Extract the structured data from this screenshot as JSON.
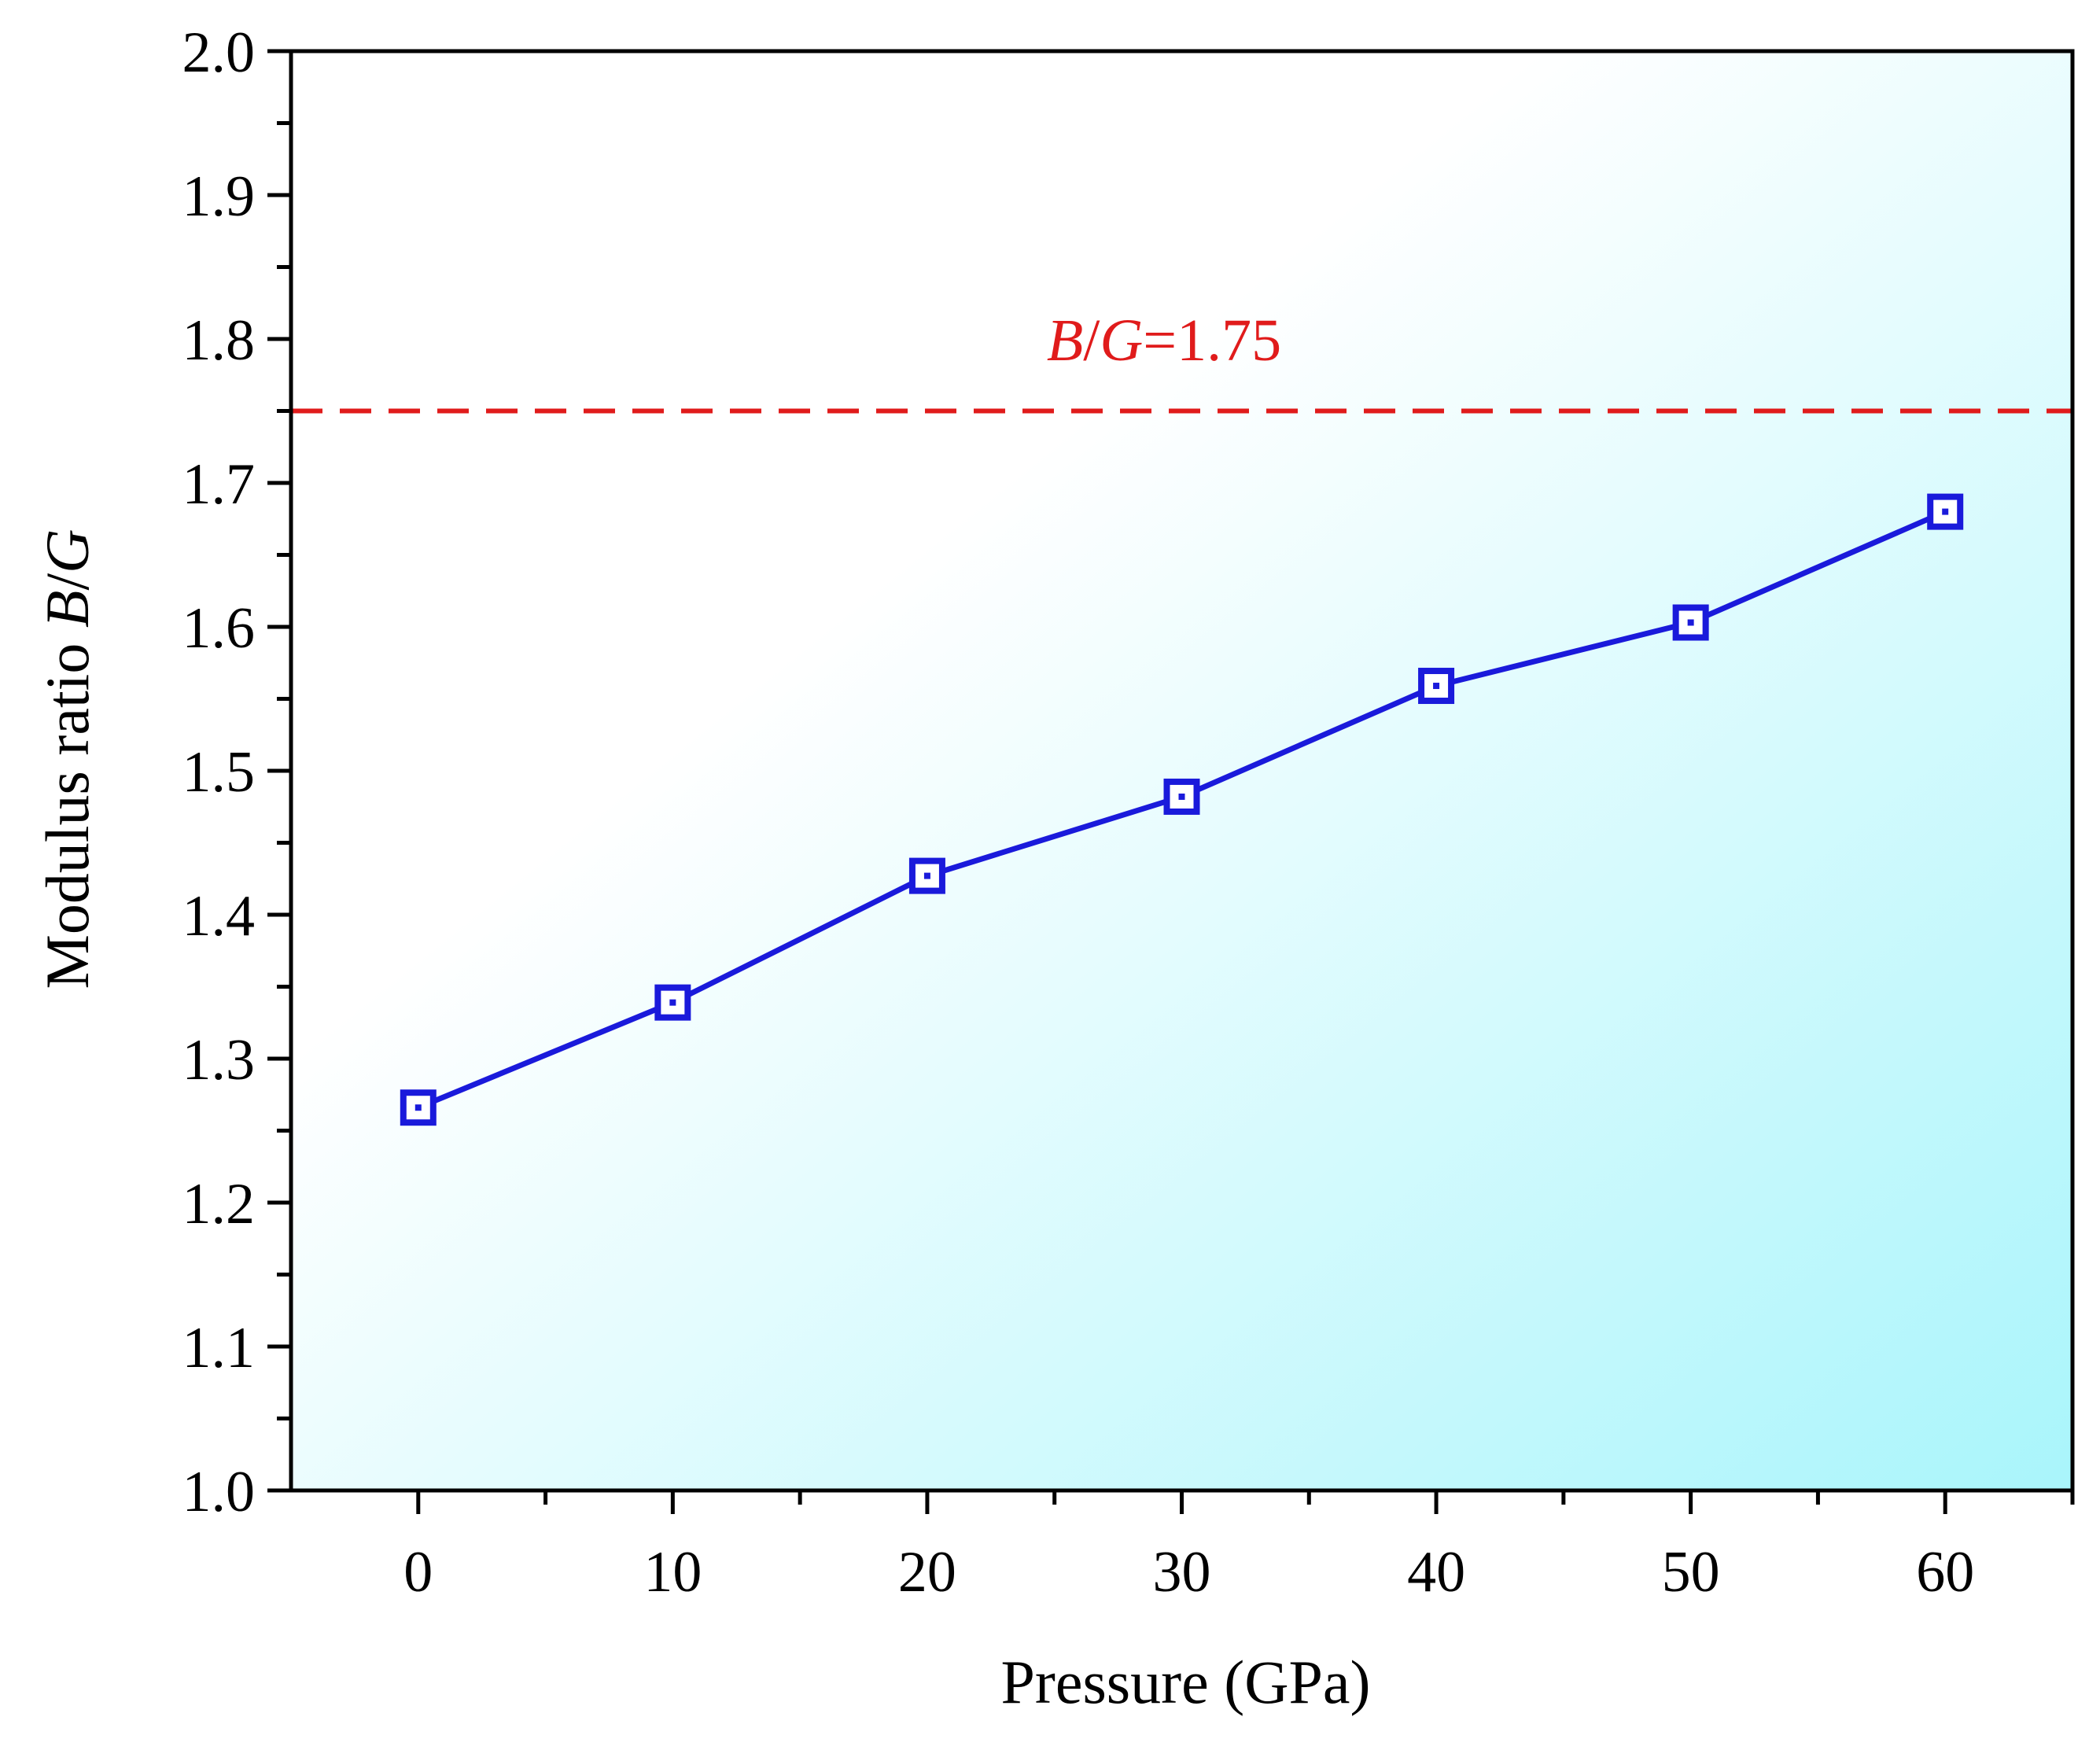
{
  "chart_data": {
    "type": "line",
    "title": "",
    "xlabel": "Pressure (GPa)",
    "ylabel": {
      "prefix": "Modulus ratio ",
      "b": "B",
      "slash": "/",
      "g": "G"
    },
    "xlim": [
      -5,
      65
    ],
    "ylim": [
      1.0,
      2.0
    ],
    "x_ticks": [
      0,
      10,
      20,
      30,
      40,
      50,
      60
    ],
    "x_tick_labels": [
      "0",
      "10",
      "20",
      "30",
      "40",
      "50",
      "60"
    ],
    "y_ticks": [
      1.0,
      1.1,
      1.2,
      1.3,
      1.4,
      1.5,
      1.6,
      1.7,
      1.8,
      1.9,
      2.0
    ],
    "y_tick_labels": [
      "1.0",
      "1.1",
      "1.2",
      "1.3",
      "1.4",
      "1.5",
      "1.6",
      "1.7",
      "1.8",
      "1.9",
      "2.0"
    ],
    "series": [
      {
        "name": "B/G",
        "x": [
          0,
          10,
          20,
          30,
          40,
          50,
          60
        ],
        "values": [
          1.266,
          1.339,
          1.427,
          1.482,
          1.559,
          1.603,
          1.68
        ],
        "color": "#1a1adb",
        "marker": "open-square-with-center-dot"
      }
    ],
    "reference_line": {
      "value": 1.75,
      "color": "#e01b1b",
      "style": "dashed",
      "label": {
        "b": "B",
        "slash": "/",
        "g": "G",
        "rest": "=1.75"
      }
    },
    "background_gradient": {
      "from": "#ffffff",
      "to": "#a9f5fb"
    }
  }
}
